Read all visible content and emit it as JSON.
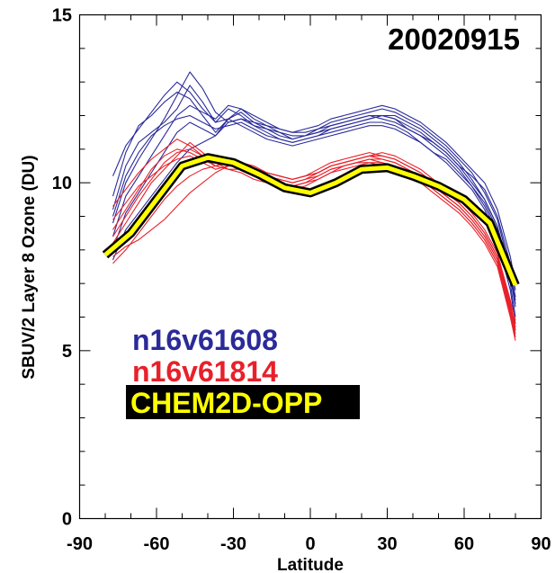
{
  "chart_data": {
    "type": "line",
    "title": "20020915",
    "xlabel": "Latitude",
    "ylabel": "SBUV/2 Layer 8 Ozone (DU)",
    "xlim": [
      -90,
      90
    ],
    "ylim": [
      0,
      15
    ],
    "xticks": [
      -90,
      -60,
      -30,
      0,
      30,
      60,
      90
    ],
    "xtick_labels": [
      "-90",
      "-60",
      "-30",
      "0",
      "30",
      "60",
      "90"
    ],
    "yticks": [
      0,
      5,
      10,
      15
    ],
    "ytick_labels": [
      "0",
      "5",
      "10",
      "15"
    ],
    "grid": false,
    "legend_placement": "lower-left",
    "latitudes": [
      -77,
      -72,
      -67,
      -62,
      -57,
      -52,
      -47,
      -42,
      -37,
      -32,
      -27,
      -22,
      -17,
      -12,
      -7,
      -2,
      3,
      8,
      13,
      18,
      23,
      28,
      33,
      38,
      43,
      48,
      53,
      58,
      63,
      68,
      73,
      78,
      80
    ],
    "series": [
      {
        "name": "n16v61608",
        "color": "#2a2a9a",
        "profiles": [
          [
            9.6,
            10.9,
            11.7,
            12.0,
            12.4,
            12.7,
            12.5,
            12.0,
            11.5,
            11.9,
            12.1,
            11.8,
            11.6,
            11.5,
            11.4,
            11.4,
            11.5,
            11.6,
            11.7,
            11.8,
            11.9,
            12.0,
            12.0,
            11.8,
            11.6,
            11.3,
            11.0,
            10.6,
            10.1,
            9.5,
            8.7,
            7.2,
            6.4
          ],
          [
            9.2,
            10.5,
            11.2,
            11.5,
            11.8,
            12.2,
            12.9,
            12.4,
            11.8,
            12.2,
            12.0,
            11.7,
            11.6,
            11.4,
            11.3,
            11.4,
            11.6,
            11.7,
            11.8,
            11.9,
            12.0,
            12.0,
            11.9,
            11.6,
            11.4,
            11.1,
            10.8,
            10.4,
            9.9,
            9.3,
            8.5,
            7.0,
            6.0
          ],
          [
            8.8,
            10.0,
            10.7,
            11.3,
            11.9,
            12.6,
            13.3,
            12.8,
            12.1,
            11.8,
            11.9,
            11.7,
            11.5,
            11.3,
            11.2,
            11.3,
            11.4,
            11.5,
            11.6,
            11.7,
            11.8,
            11.8,
            11.7,
            11.5,
            11.2,
            10.9,
            10.6,
            10.2,
            9.8,
            9.2,
            8.3,
            6.8,
            5.8
          ],
          [
            8.4,
            9.6,
            10.2,
            10.8,
            11.4,
            12.0,
            12.3,
            12.1,
            11.9,
            12.3,
            12.2,
            12.0,
            11.8,
            11.6,
            11.5,
            11.5,
            11.6,
            11.8,
            11.9,
            12.0,
            12.1,
            12.2,
            12.1,
            11.9,
            11.7,
            11.4,
            11.1,
            10.7,
            10.3,
            9.7,
            8.9,
            7.4,
            6.6
          ],
          [
            8.0,
            9.1,
            9.7,
            10.3,
            10.9,
            11.5,
            11.8,
            11.6,
            11.4,
            11.9,
            12.2,
            11.9,
            11.7,
            11.5,
            11.3,
            11.4,
            11.5,
            11.7,
            11.8,
            11.9,
            12.0,
            11.9,
            11.8,
            11.6,
            11.4,
            11.2,
            10.9,
            10.5,
            10.2,
            9.8,
            9.0,
            7.6,
            6.8
          ],
          [
            7.7,
            8.6,
            9.1,
            9.6,
            10.1,
            10.6,
            11.0,
            11.2,
            11.4,
            11.8,
            11.9,
            11.8,
            11.7,
            11.6,
            11.5,
            11.6,
            11.7,
            11.9,
            12.0,
            12.1,
            12.2,
            12.3,
            12.2,
            12.0,
            11.8,
            11.5,
            11.2,
            10.8,
            10.4,
            10.0,
            9.2,
            7.8,
            7.0
          ],
          [
            10.2,
            11.1,
            11.6,
            12.1,
            12.6,
            13.0,
            12.7,
            12.2,
            11.8,
            11.9,
            11.7,
            11.5,
            11.3,
            11.2,
            11.1,
            11.2,
            11.3,
            11.4,
            11.5,
            11.6,
            11.7,
            11.7,
            11.6,
            11.4,
            11.2,
            10.9,
            10.7,
            10.3,
            9.9,
            9.4,
            8.6,
            7.2,
            6.3
          ],
          [
            9.0,
            10.2,
            10.9,
            11.4,
            11.7,
            11.9,
            12.0,
            11.8,
            11.6,
            11.7,
            11.8,
            11.6,
            11.4,
            11.3,
            11.2,
            11.3,
            11.4,
            11.6,
            11.7,
            11.8,
            11.9,
            12.0,
            11.9,
            11.7,
            11.5,
            11.2,
            10.9,
            10.5,
            10.0,
            9.5,
            8.7,
            7.3,
            6.5
          ]
        ]
      },
      {
        "name": "n16v61814",
        "color": "#e8202a",
        "profiles": [
          [
            8.6,
            9.2,
            9.8,
            10.4,
            10.8,
            11.0,
            10.9,
            10.7,
            10.5,
            10.6,
            10.5,
            10.3,
            10.2,
            10.1,
            10.0,
            10.1,
            10.3,
            10.5,
            10.6,
            10.7,
            10.8,
            10.7,
            10.6,
            10.4,
            10.2,
            9.9,
            9.6,
            9.3,
            8.9,
            8.4,
            7.7,
            6.3,
            5.6
          ],
          [
            8.2,
            8.8,
            9.4,
            10.0,
            10.4,
            10.8,
            11.2,
            10.9,
            10.6,
            10.4,
            10.4,
            10.2,
            10.1,
            10.0,
            9.9,
            10.0,
            10.2,
            10.4,
            10.5,
            10.6,
            10.7,
            10.6,
            10.5,
            10.3,
            10.1,
            9.8,
            9.5,
            9.2,
            8.8,
            8.3,
            7.6,
            6.1,
            5.4
          ],
          [
            7.9,
            8.4,
            8.9,
            9.5,
            10.0,
            10.4,
            10.6,
            10.8,
            10.7,
            10.6,
            10.6,
            10.4,
            10.3,
            10.2,
            10.1,
            10.2,
            10.4,
            10.6,
            10.7,
            10.8,
            10.9,
            10.8,
            10.7,
            10.5,
            10.3,
            10.0,
            9.7,
            9.4,
            9.0,
            8.5,
            7.8,
            6.4,
            5.7
          ],
          [
            7.6,
            8.0,
            8.5,
            9.0,
            9.5,
            9.9,
            10.2,
            10.4,
            10.5,
            10.6,
            10.5,
            10.3,
            10.1,
            10.0,
            9.9,
            10.0,
            10.1,
            10.3,
            10.4,
            10.5,
            10.6,
            10.6,
            10.5,
            10.3,
            10.1,
            9.8,
            9.5,
            9.2,
            8.8,
            8.3,
            7.6,
            6.2,
            5.5
          ],
          [
            9.3,
            9.8,
            10.3,
            10.7,
            11.0,
            11.3,
            11.1,
            10.8,
            10.5,
            10.4,
            10.3,
            10.1,
            10.0,
            9.9,
            9.8,
            9.9,
            10.1,
            10.3,
            10.5,
            10.6,
            10.6,
            10.5,
            10.4,
            10.2,
            10.0,
            9.7,
            9.4,
            9.1,
            8.7,
            8.2,
            7.5,
            6.0,
            5.3
          ],
          [
            8.9,
            9.4,
            9.9,
            10.2,
            10.5,
            10.7,
            10.8,
            10.6,
            10.4,
            10.5,
            10.5,
            10.4,
            10.2,
            10.1,
            10.0,
            10.1,
            10.2,
            10.4,
            10.5,
            10.6,
            10.7,
            10.7,
            10.6,
            10.4,
            10.2,
            9.9,
            9.6,
            9.3,
            8.9,
            8.4,
            7.7,
            6.3,
            5.8
          ],
          [
            7.8,
            8.1,
            8.3,
            8.6,
            8.9,
            9.3,
            9.7,
            10.0,
            10.3,
            10.5,
            10.6,
            10.5,
            10.3,
            10.2,
            10.1,
            10.2,
            10.3,
            10.5,
            10.6,
            10.7,
            10.8,
            10.9,
            10.8,
            10.6,
            10.4,
            10.1,
            9.8,
            9.5,
            9.1,
            8.6,
            7.9,
            6.5,
            5.9
          ],
          [
            8.4,
            9.0,
            9.6,
            10.1,
            10.6,
            10.9,
            11.0,
            10.8,
            10.6,
            10.7,
            10.6,
            10.4,
            10.3,
            10.2,
            10.1,
            10.2,
            10.3,
            10.5,
            10.6,
            10.7,
            10.8,
            10.8,
            10.7,
            10.5,
            10.3,
            10.0,
            9.7,
            9.4,
            9.0,
            8.5,
            7.8,
            6.4,
            5.6
          ]
        ]
      },
      {
        "name": "CHEM2D-OPP",
        "color": "#ffff00",
        "outline": "#000000",
        "x": [
          -80,
          -70,
          -60,
          -50,
          -40,
          -30,
          -20,
          -10,
          0,
          10,
          20,
          30,
          40,
          50,
          60,
          70,
          80
        ],
        "values": [
          7.85,
          8.5,
          9.5,
          10.5,
          10.75,
          10.6,
          10.25,
          9.85,
          9.7,
          10.0,
          10.4,
          10.45,
          10.2,
          9.9,
          9.5,
          8.8,
          6.95
        ]
      }
    ]
  }
}
